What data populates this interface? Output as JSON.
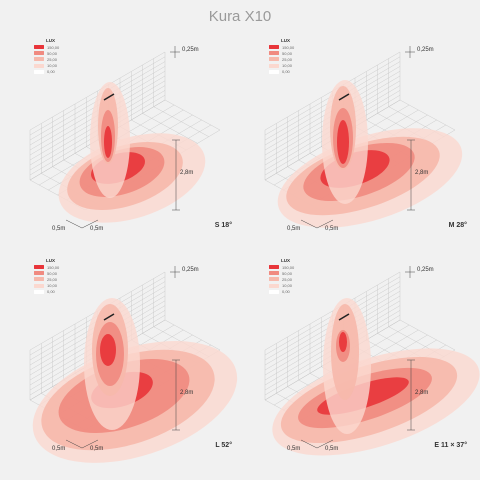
{
  "title": "Kura X10",
  "legend": {
    "title": "LUX",
    "items": [
      {
        "label": "150,00",
        "color": "#e8353a"
      },
      {
        "label": "50,00",
        "color": "#f08a80"
      },
      {
        "label": "25,00",
        "color": "#f6b8ab"
      },
      {
        "label": "10,00",
        "color": "#fbd8cf"
      },
      {
        "label": "0,00",
        "color": "#ffffff"
      }
    ]
  },
  "dimensions": {
    "top_offset": "0,25m",
    "height": "2,8m",
    "grid_left": "0,5m",
    "grid_right": "0,5m"
  },
  "panels": [
    {
      "beam": "S 18°"
    },
    {
      "beam": "M 28°"
    },
    {
      "beam": "L 52°"
    },
    {
      "beam": "E 11 × 37°"
    }
  ]
}
